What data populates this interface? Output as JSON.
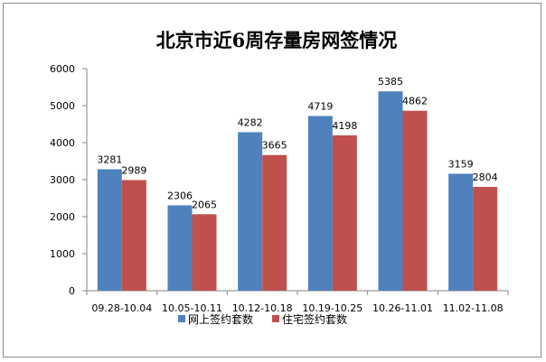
{
  "chart_data": {
    "type": "bar",
    "title": "北京市近6周存量房网签情况",
    "categories": [
      "09.28-10.04",
      "10.05-10.11",
      "10.12-10.18",
      "10.19-10.25",
      "10.26-11.01",
      "11.02-11.08"
    ],
    "series": [
      {
        "name": "网上签约套数",
        "color": "#4f81bd",
        "values": [
          3281,
          2306,
          4282,
          4719,
          5385,
          3159
        ]
      },
      {
        "name": "住宅签约套数",
        "color": "#c0504d",
        "values": [
          2989,
          2065,
          3665,
          4198,
          4862,
          2804
        ]
      }
    ],
    "ylim": [
      0,
      6000
    ],
    "yticks": [
      0,
      1000,
      2000,
      3000,
      4000,
      5000,
      6000
    ],
    "xlabel": "",
    "ylabel": "",
    "grid": false,
    "legend_position": "bottom"
  }
}
